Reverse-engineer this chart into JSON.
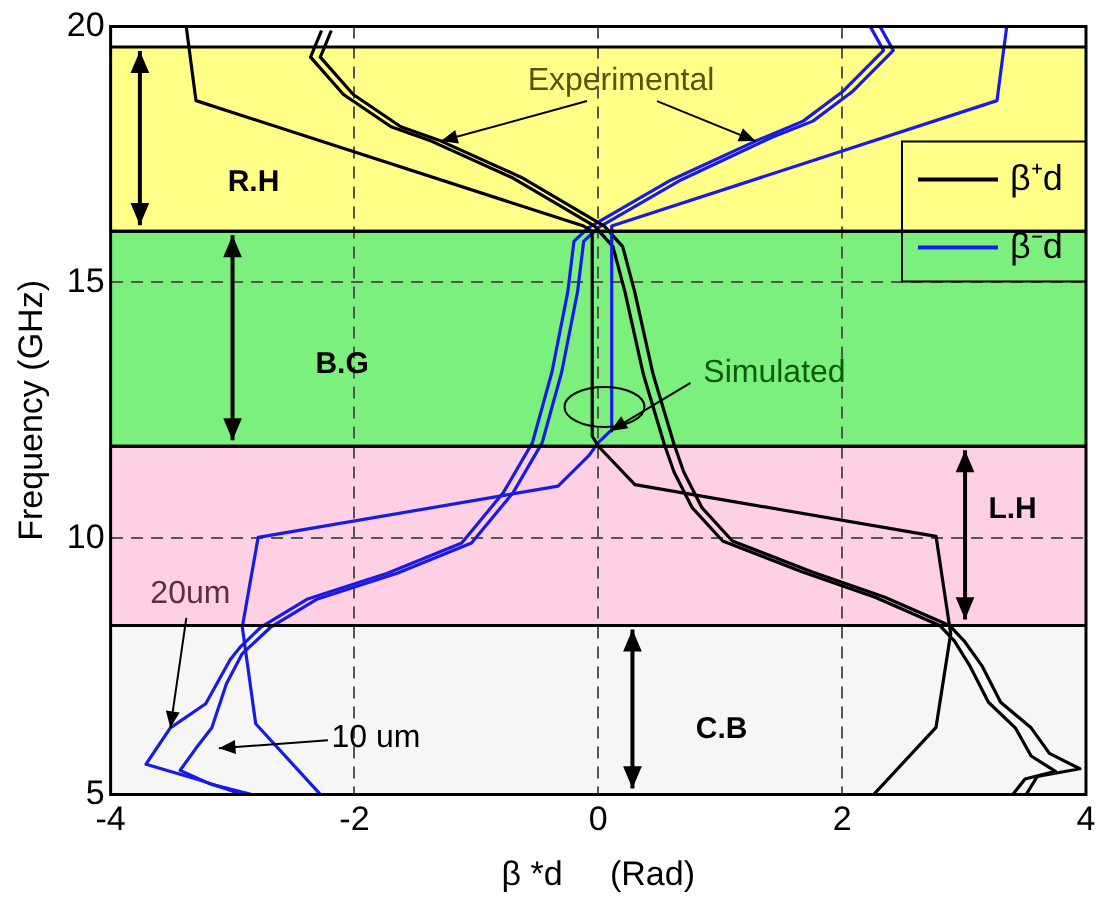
{
  "chart_data": {
    "type": "line",
    "xlabel": "β *d     (Rad)",
    "ylabel": "Frequency (GHz)",
    "xlim": [
      -4,
      4
    ],
    "xticks": [
      -4,
      -2,
      0,
      2,
      4
    ],
    "ylim": [
      5,
      20
    ],
    "yticks": [
      5,
      10,
      15,
      20
    ],
    "grid": true,
    "legend": "right",
    "bands": [
      {
        "axis": "y",
        "from": 5,
        "to": 8.3,
        "label": "C.B",
        "color": "#f6f6f6"
      },
      {
        "axis": "y",
        "from": 8.3,
        "to": 11.8,
        "label": "L.H",
        "color": "#ffd0e4"
      },
      {
        "axis": "y",
        "from": 11.8,
        "to": 16,
        "label": "B.G",
        "color": "#7cf07c"
      },
      {
        "axis": "y",
        "from": 16,
        "to": 19.6,
        "label": "R.H",
        "color": "#ffff88"
      }
    ],
    "annotations": [
      {
        "text": "Experimental",
        "x": -1.29,
        "y": 17.76
      },
      {
        "text": "Simulated",
        "x": 0.1,
        "y": 12.1
      },
      {
        "text": "20um",
        "x": -3.51,
        "y": 6.3
      },
      "10 um"
    ],
    "series": [
      {
        "name": "β⁺d",
        "color": "#000000",
        "x": [
          2.26,
          2.77,
          2.89,
          2.77,
          0.3,
          0,
          -0.05,
          -0.05,
          -0.12,
          -3.3,
          -3.38
        ],
        "values": [
          5,
          6.31,
          8.14,
          10.04,
          11.05,
          11.8,
          12,
          16,
          16.1,
          18.55,
          20
        ]
      },
      {
        "name": "β⁻d",
        "color": "#1a1ae6",
        "x": [
          -2.28,
          -2.81,
          -2.92,
          -2.79,
          -0.33,
          -0.08,
          0,
          0.1,
          0.11,
          3.27,
          3.35
        ],
        "values": [
          5,
          6.38,
          8.27,
          10.02,
          11.02,
          11.61,
          11.87,
          12.1,
          16.1,
          18.55,
          20
        ]
      },
      {
        "color": "#000000",
        "x": [
          3.51,
          3.6,
          3.95,
          3.7,
          3.55,
          3.3,
          3.15,
          3.0,
          2.88,
          2.35,
          1.75,
          1.1,
          0.85,
          0.7,
          0.62,
          0.45,
          0.3,
          0.2,
          0.05,
          -0.63,
          -1.29,
          -1.62,
          -2.01,
          -2.28,
          -2.19
        ],
        "values": [
          5,
          5.35,
          5.5,
          5.8,
          6.3,
          6.8,
          7.5,
          8.0,
          8.3,
          8.85,
          9.35,
          9.95,
          10.6,
          11.3,
          11.85,
          13.2,
          14.8,
          15.7,
          16.1,
          17.05,
          17.76,
          18.04,
          18.67,
          19.4,
          19.92
        ]
      },
      {
        "color": "#000000",
        "x": [
          3.4,
          3.5,
          3.75,
          3.55,
          3.42,
          3.2,
          3.05,
          2.92,
          2.8,
          2.27,
          1.67,
          1.02,
          0.77,
          0.62,
          0.54,
          0.37,
          0.22,
          0.12,
          -0.03,
          -0.71,
          -1.37,
          -1.7,
          -2.09,
          -2.36,
          -2.27
        ],
        "values": [
          5,
          5.3,
          5.45,
          5.75,
          6.3,
          6.8,
          7.5,
          8.0,
          8.3,
          8.85,
          9.35,
          9.95,
          10.6,
          11.3,
          11.85,
          13.2,
          14.8,
          15.7,
          16.1,
          17.05,
          17.76,
          18.04,
          18.67,
          19.4,
          19.92
        ]
      },
      {
        "color": "#1a1ae6",
        "x": [
          -2.92,
          -3.27,
          -3.71,
          -3.51,
          -3.22,
          -3.02,
          -2.94,
          -2.77,
          -2.39,
          -1.73,
          -1.12,
          -0.78,
          -0.54,
          -0.38,
          -0.25,
          -0.2,
          -0.08,
          0.58,
          1.29,
          1.68,
          2.01,
          2.34,
          2.23
        ],
        "values": [
          5,
          5.28,
          5.59,
          6.3,
          6.77,
          7.63,
          7.87,
          8.26,
          8.81,
          9.32,
          9.91,
          10.89,
          11.87,
          13.25,
          14.82,
          15.8,
          16.07,
          16.98,
          17.76,
          18.15,
          18.74,
          19.53,
          20
        ]
      },
      {
        "color": "#1a1ae6",
        "x": [
          -2.85,
          -3.18,
          -3.43,
          -3.3,
          -3.17,
          -3.05,
          -2.92,
          -2.69,
          -2.31,
          -1.65,
          -1.04,
          -0.7,
          -0.46,
          -0.3,
          -0.17,
          -0.12,
          0,
          0.66,
          1.43,
          1.76,
          2.09,
          2.42,
          2.31
        ],
        "values": [
          5,
          5.2,
          5.47,
          5.9,
          6.3,
          7.16,
          7.75,
          8.26,
          8.81,
          9.32,
          9.91,
          10.89,
          11.87,
          13.25,
          14.82,
          15.8,
          16.07,
          16.98,
          17.84,
          18.15,
          18.74,
          19.53,
          20
        ]
      }
    ]
  }
}
